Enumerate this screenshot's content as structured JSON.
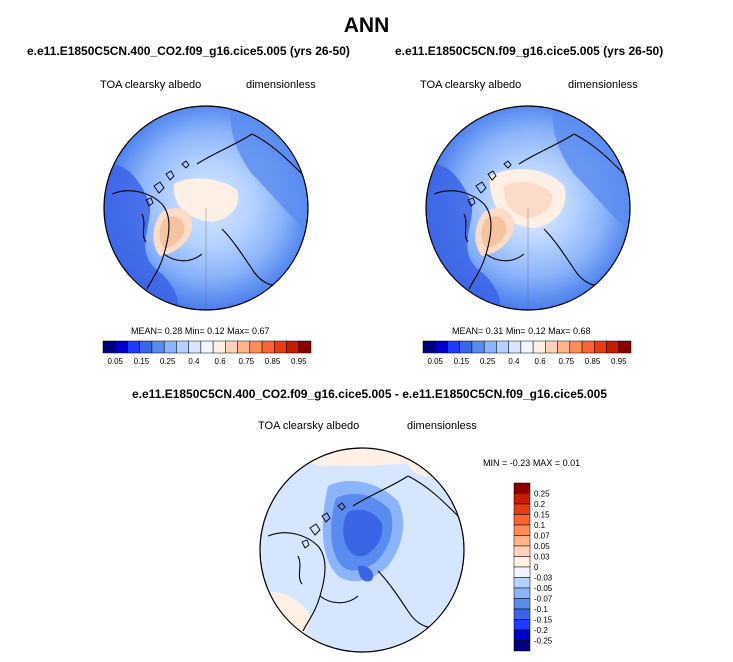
{
  "title": "ANN",
  "palette": {
    "pos": [
      "#00007F",
      "#0000C8",
      "#1E3CFF",
      "#3C64E6",
      "#5A8CF0",
      "#8CB4FA",
      "#B4D2FF",
      "#D7E6FF",
      "#F0F5FF",
      "#FFF0E6",
      "#FFD2B9",
      "#FFB48C",
      "#FF8C5A",
      "#FF6432",
      "#E63C14",
      "#C81E00",
      "#8C0000"
    ],
    "land_light": "#FADCC8",
    "land_strong": "#F5C3A0"
  },
  "chart_data": [
    {
      "type": "heatmap",
      "projection": "north-polar-stereographic",
      "case": "e.e11.E1850C5CN.400_CO2.f09_g16.cice5.005 (yrs 26-50)",
      "variable": "TOA clearsky albedo",
      "units": "dimensionless",
      "stats": {
        "mean_label": "MEAN=",
        "mean": "0.28",
        "min_label": "Min=",
        "min": "0.12",
        "max_label": "Max=",
        "max": "0.67"
      },
      "colorbar": {
        "orientation": "horizontal",
        "ticks": [
          "0.05",
          "0.15",
          "0.25",
          "0.4",
          "0.6",
          "0.75",
          "0.85",
          "0.95"
        ],
        "n_colors": 17
      }
    },
    {
      "type": "heatmap",
      "projection": "north-polar-stereographic",
      "case": "e.e11.E1850C5CN.f09_g16.cice5.005 (yrs 26-50)",
      "variable": "TOA clearsky albedo",
      "units": "dimensionless",
      "stats": {
        "mean_label": "MEAN=",
        "mean": "0.31",
        "min_label": "Min=",
        "min": "0.12",
        "max_label": "Max=",
        "max": "0.68"
      },
      "colorbar": {
        "orientation": "horizontal",
        "ticks": [
          "0.05",
          "0.15",
          "0.25",
          "0.4",
          "0.6",
          "0.75",
          "0.85",
          "0.95"
        ],
        "n_colors": 17
      }
    },
    {
      "type": "heatmap",
      "projection": "north-polar-stereographic",
      "case": "e.e11.E1850C5CN.400_CO2.f09_g16.cice5.005 - e.e11.E1850C5CN.f09_g16.cice5.005",
      "variable": "TOA clearsky albedo",
      "units": "dimensionless",
      "stats": {
        "min_label": "MIN =",
        "min": "-0.23",
        "max_label": "MAX =",
        "max": "0.01"
      },
      "colorbar": {
        "orientation": "vertical",
        "labels": [
          "0.25",
          "0.2",
          "0.15",
          "0.1",
          "0.07",
          "0.05",
          "0.03",
          "0",
          "-0.03",
          "-0.05",
          "-0.07",
          "-0.1",
          "-0.15",
          "-0.2",
          "-0.25"
        ],
        "colors": [
          "#8C0000",
          "#C81E00",
          "#E63C14",
          "#FF6432",
          "#FF8C5A",
          "#FFB48C",
          "#FFD2B9",
          "#FFF0E6",
          "#F0F5FF",
          "#B4D2FF",
          "#8CB4FA",
          "#5A8CF0",
          "#3C64E6",
          "#1E3CFF",
          "#0000C8",
          "#00007F"
        ]
      }
    }
  ]
}
